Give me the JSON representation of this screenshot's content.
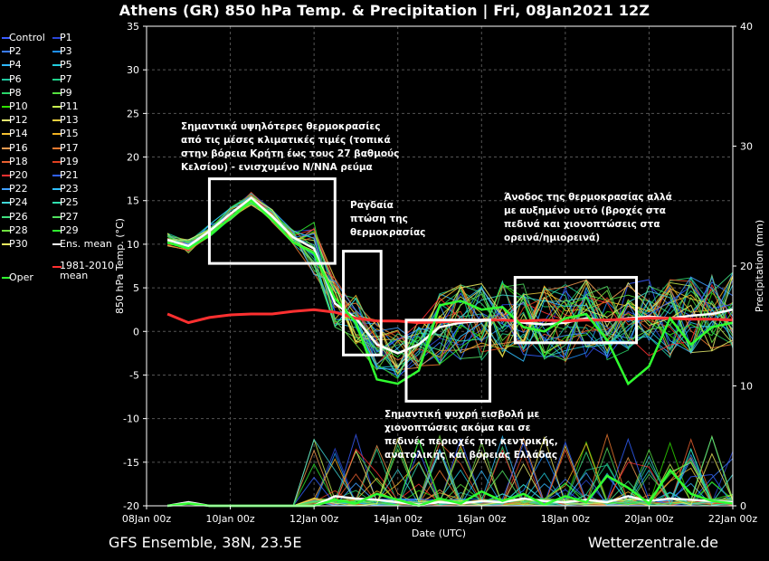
{
  "title": "Athens  (GR)  850 hPa Temp. & Precipitation | Fri, 08Jan2021 12Z",
  "footer": {
    "left": "GFS Ensemble, 38N, 23.5E",
    "right": "Wetterzentrale.de"
  },
  "legend": {
    "items": [
      {
        "label": "Control",
        "color": "#3a5cff"
      },
      {
        "label": "P1",
        "color": "#2b46d8"
      },
      {
        "label": "P2",
        "color": "#3a7bff"
      },
      {
        "label": "P3",
        "color": "#1e90ff"
      },
      {
        "label": "P4",
        "color": "#2fb8ff"
      },
      {
        "label": "P5",
        "color": "#22ccdd"
      },
      {
        "label": "P6",
        "color": "#20c8a0"
      },
      {
        "label": "P7",
        "color": "#20d08a"
      },
      {
        "label": "P8",
        "color": "#2ad66a"
      },
      {
        "label": "P9",
        "color": "#55e040"
      },
      {
        "label": "P10",
        "color": "#2fe000"
      },
      {
        "label": "P11",
        "color": "#c8f050"
      },
      {
        "label": "P12",
        "color": "#eaf070"
      },
      {
        "label": "P13",
        "color": "#f0d040"
      },
      {
        "label": "P14",
        "color": "#f5c030"
      },
      {
        "label": "P15",
        "color": "#f0b020"
      },
      {
        "label": "P16",
        "color": "#f09a50"
      },
      {
        "label": "P17",
        "color": "#f07a30"
      },
      {
        "label": "P18",
        "color": "#e86030"
      },
      {
        "label": "P19",
        "color": "#e04020"
      },
      {
        "label": "P20",
        "color": "#ff3030"
      },
      {
        "label": "P21",
        "color": "#3060ff"
      },
      {
        "label": "P22",
        "color": "#40a0ff"
      },
      {
        "label": "P23",
        "color": "#30c0ff"
      },
      {
        "label": "P24",
        "color": "#40d8d8"
      },
      {
        "label": "P25",
        "color": "#30e0b0"
      },
      {
        "label": "P26",
        "color": "#40e080"
      },
      {
        "label": "P27",
        "color": "#50e060"
      },
      {
        "label": "P28",
        "color": "#70e040"
      },
      {
        "label": "P29",
        "color": "#30f030"
      },
      {
        "label": "P30",
        "color": "#f0f060"
      },
      {
        "label": "Ens. mean",
        "color": "#ffffff"
      },
      {
        "label": "1981-2010 mean",
        "color": "#ff3030"
      },
      {
        "label": "Oper",
        "color": "#30ff30"
      }
    ]
  },
  "annotations": [
    {
      "text": [
        "Σημαντικά υψηλότερες θερμοκρασίες",
        "από τις μέσες κλιματικές τιμές (τοπικά",
        "στην βόρεια Κρήτη έως τους 27 βαθμούς",
        "Κελσίου) - ενισχυμένο N/NNA ρεύμα"
      ]
    },
    {
      "text": [
        "Ραγδαία",
        "πτώση της",
        "θερμοκρασίας"
      ]
    },
    {
      "text": [
        "Άνοδος της θερμοκρασίας αλλά",
        "με αυξημένο υετό (βροχές στα",
        "πεδινά και χιονοπτώσεις στα",
        "ορεινά/ημιορεινά)"
      ]
    },
    {
      "text": [
        "Σημαντική ψυχρή εισβολή με",
        "χιονοπτώσεις ακόμα και σε",
        "πεδινές περιοχές της κεντρικής,",
        "ανατολικής και βόρειας Ελλάδας"
      ]
    }
  ],
  "chart_data": {
    "type": "line",
    "xlabel": "Date (UTC)",
    "ylabel": "850 hPa Temp. (°C)",
    "y2label": "Precipitation (mm)",
    "x_ticks": [
      "08Jan 00z",
      "10Jan 00z",
      "12Jan 00z",
      "14Jan 00z",
      "16Jan 00z",
      "18Jan 00z",
      "20Jan 00z",
      "22Jan 00z"
    ],
    "ylim": [
      -20,
      35
    ],
    "y_ticks": [
      35,
      30,
      25,
      20,
      15,
      10,
      5,
      0,
      -5,
      -10,
      -15,
      -20
    ],
    "y2lim": [
      0,
      40
    ],
    "y2_ticks": [
      40,
      30,
      20,
      10,
      0
    ],
    "grid": true,
    "legend_placement": "left",
    "x_days": [
      0.5,
      1,
      1.5,
      2,
      2.5,
      3,
      3.5,
      4,
      4.5,
      5,
      5.5,
      6,
      6.5,
      7,
      7.5,
      8,
      8.5,
      9,
      9.5,
      10,
      10.5,
      11,
      11.5,
      12,
      12.5,
      13,
      13.5,
      14
    ],
    "series": [
      {
        "name": "Ens. mean",
        "color": "#ffffff",
        "values": [
          10.5,
          9.8,
          11.5,
          13.5,
          15.3,
          13.2,
          10.8,
          9.5,
          3.2,
          1.5,
          -1.5,
          -2.5,
          -1.5,
          0.5,
          1.0,
          1.2,
          1.4,
          1.0,
          0.8,
          1.0,
          1.5,
          1.2,
          1.5,
          1.7,
          1.5,
          1.8,
          2.0,
          2.5
        ]
      },
      {
        "name": "1981-2010 mean",
        "color": "#ff3030",
        "values": [
          2.0,
          1.0,
          1.6,
          1.9,
          2.0,
          2.0,
          2.3,
          2.5,
          2.2,
          1.5,
          1.2,
          1.2,
          1.0,
          1.1,
          1.2,
          1.3,
          1.3,
          1.2,
          1.3,
          1.2,
          1.3,
          1.3,
          1.4,
          1.5,
          1.5,
          1.4,
          1.4,
          1.3
        ]
      },
      {
        "name": "Oper",
        "color": "#30ff30",
        "values": [
          10.2,
          9.5,
          11.0,
          13.0,
          15.0,
          12.8,
          10.2,
          9.0,
          3.8,
          1.0,
          -5.5,
          -6.0,
          -4.5,
          3.0,
          3.5,
          2.5,
          2.8,
          0.5,
          0.0,
          1.5,
          2.0,
          -1.0,
          -6.0,
          -4.0,
          1.5,
          -1.5,
          0.5,
          1.0
        ]
      }
    ],
    "precip_series": [
      {
        "name": "Ens. mean",
        "color": "#ffffff",
        "values": [
          0,
          0.3,
          0,
          0,
          0,
          0,
          0,
          0,
          0.8,
          0.6,
          0.5,
          0.3,
          0.1,
          0.3,
          0.2,
          0.4,
          0.3,
          0.6,
          0.4,
          0.3,
          0.5,
          0.3,
          0.8,
          0.4,
          0.6,
          0.5,
          0.4,
          0.3
        ]
      },
      {
        "name": "Oper",
        "color": "#30ff30",
        "values": [
          0,
          0.2,
          0,
          0,
          0,
          0,
          0,
          0,
          0.5,
          0.2,
          1.0,
          0.5,
          0,
          0.6,
          0.2,
          1.2,
          0.4,
          1.0,
          0.1,
          0.8,
          0.3,
          2.5,
          1.5,
          0.2,
          3.0,
          1.0,
          0.4,
          0.2
        ]
      }
    ]
  }
}
